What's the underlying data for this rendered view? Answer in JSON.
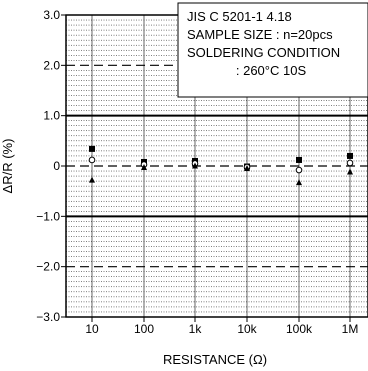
{
  "chart_data": {
    "type": "scatter",
    "xlabel": "RESISTANCE (Ω)",
    "ylabel": "ΔR/R (%)",
    "categories": [
      "10",
      "100",
      "1k",
      "10k",
      "100k",
      "1M"
    ],
    "ylim": [
      -3.0,
      3.0
    ],
    "yticks": [
      {
        "value": 3.0,
        "label": "3.0"
      },
      {
        "value": 2.0,
        "label": "2.0"
      },
      {
        "value": 1.0,
        "label": "1.0"
      },
      {
        "value": 0,
        "label": "0"
      },
      {
        "value": -1.0,
        "label": "−1.0"
      },
      {
        "value": -2.0,
        "label": "−2.0"
      },
      {
        "value": -3.0,
        "label": "−3.0"
      }
    ],
    "grid": true,
    "solid_limits": [
      1.0,
      -1.0
    ],
    "dashed_lines": [
      2.0,
      0,
      -2.0
    ],
    "series": [
      {
        "marker": "square",
        "values": [
          0.34,
          0.08,
          0.1,
          -0.01,
          0.12,
          0.2
        ]
      },
      {
        "marker": "circle",
        "values": [
          0.12,
          0.03,
          0.05,
          -0.02,
          -0.08,
          0.06
        ]
      },
      {
        "marker": "triangle",
        "values": [
          -0.28,
          -0.03,
          0.0,
          -0.05,
          -0.33,
          -0.12
        ]
      }
    ],
    "annotation": {
      "lines": [
        "JIS C 5201-1 4.18",
        "SAMPLE SIZE : n=20pcs",
        "SOLDERING CONDITION",
        ": 260°C 10S"
      ]
    }
  }
}
